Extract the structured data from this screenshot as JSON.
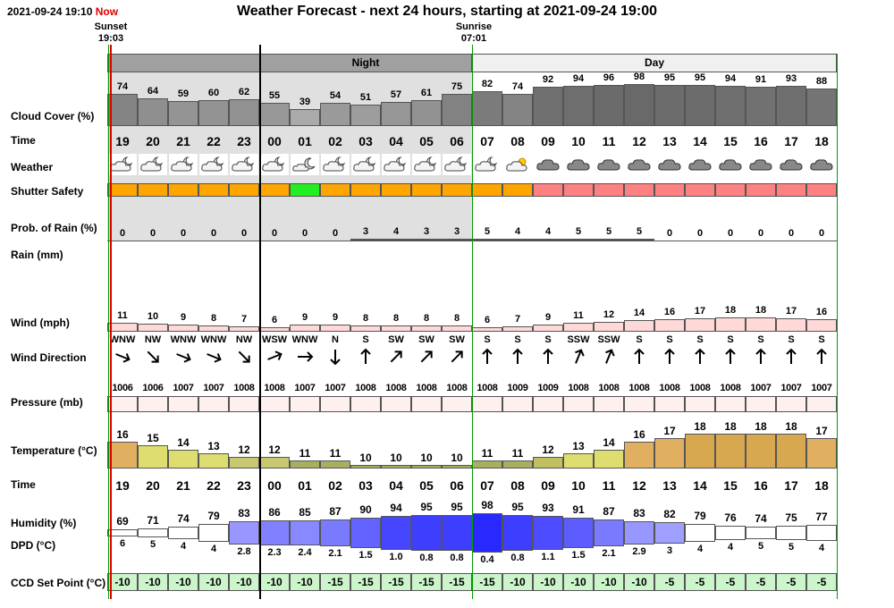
{
  "header": {
    "datetime": "2021-09-24 19:10",
    "now_label": "Now",
    "title": "Weather Forecast - next 24 hours, starting at 2021-09-24 19:00",
    "sunset_label": "Sunset",
    "sunset_time": "19:03",
    "sunrise_label": "Sunrise",
    "sunrise_time": "07:01",
    "night_label": "Night",
    "day_label": "Day"
  },
  "labels": {
    "cloud_cover": "Cloud Cover (%)",
    "time": "Time",
    "weather": "Weather",
    "shutter_safety": "Shutter Safety",
    "prob_rain": "Prob. of Rain (%)",
    "rain": "Rain (mm)",
    "wind": "Wind (mph)",
    "wind_direction": "Wind Direction",
    "pressure": "Pressure (mb)",
    "temperature": "Temperature (°C)",
    "time2": "Time",
    "humidity": "Humidity (%)",
    "dpd": "DPD (°C)",
    "ccd": "CCD Set Point (°C)"
  },
  "hours": [
    "19",
    "20",
    "21",
    "22",
    "23",
    "00",
    "01",
    "02",
    "03",
    "04",
    "05",
    "06",
    "07",
    "08",
    "09",
    "10",
    "11",
    "12",
    "13",
    "14",
    "15",
    "16",
    "17",
    "18"
  ],
  "cloud_cover": [
    74,
    64,
    59,
    60,
    62,
    55,
    39,
    54,
    51,
    57,
    61,
    75,
    82,
    74,
    92,
    94,
    96,
    98,
    95,
    95,
    94,
    91,
    93,
    88
  ],
  "weather_icons": [
    "partly-cloudy-night-icon",
    "partly-cloudy-night-icon",
    "partly-cloudy-night-icon",
    "partly-cloudy-night-icon",
    "partly-cloudy-night-icon",
    "partly-cloudy-night-icon",
    "moon-cloud-icon",
    "partly-cloudy-night-icon",
    "partly-cloudy-night-icon",
    "partly-cloudy-night-icon",
    "partly-cloudy-night-icon",
    "partly-cloudy-night-icon",
    "partly-cloudy-night-icon",
    "partly-cloudy-day-icon",
    "cloud-icon",
    "cloud-icon",
    "cloud-icon",
    "cloud-icon",
    "cloud-icon",
    "cloud-icon",
    "cloud-icon",
    "cloud-icon",
    "cloud-icon",
    "cloud-icon"
  ],
  "shutter_safety": [
    "orange",
    "orange",
    "orange",
    "orange",
    "orange",
    "orange",
    "green",
    "orange",
    "orange",
    "orange",
    "orange",
    "orange",
    "orange",
    "orange",
    "red",
    "red",
    "red",
    "red",
    "red",
    "red",
    "red",
    "red",
    "red",
    "red"
  ],
  "shutter_colors": {
    "orange": "#ffa500",
    "green": "#22ee22",
    "red": "#ff8080"
  },
  "prob_rain": [
    0,
    0,
    0,
    0,
    0,
    0,
    0,
    0,
    3,
    4,
    3,
    3,
    5,
    4,
    4,
    5,
    5,
    5,
    0,
    0,
    0,
    0,
    0,
    0
  ],
  "wind_speed": [
    11,
    10,
    9,
    8,
    7,
    6,
    9,
    9,
    8,
    8,
    8,
    8,
    6,
    7,
    9,
    11,
    12,
    14,
    16,
    17,
    18,
    18,
    17,
    16
  ],
  "wind_dir": [
    "WNW",
    "NW",
    "WNW",
    "WNW",
    "NW",
    "WSW",
    "WNW",
    "N",
    "S",
    "SW",
    "SW",
    "SW",
    "S",
    "S",
    "S",
    "SSW",
    "SSW",
    "S",
    "S",
    "S",
    "S",
    "S",
    "S",
    "S"
  ],
  "wind_arrow_deg": [
    112,
    135,
    112,
    112,
    135,
    68,
    90,
    180,
    0,
    45,
    45,
    45,
    0,
    0,
    0,
    22,
    22,
    0,
    0,
    0,
    0,
    0,
    0,
    0
  ],
  "pressure": [
    1006,
    1006,
    1007,
    1007,
    1008,
    1008,
    1007,
    1007,
    1008,
    1008,
    1008,
    1008,
    1008,
    1009,
    1009,
    1008,
    1008,
    1008,
    1008,
    1008,
    1008,
    1007,
    1007,
    1007
  ],
  "temperature": [
    16,
    15,
    14,
    13,
    12,
    12,
    11,
    11,
    10,
    10,
    10,
    10,
    11,
    11,
    12,
    13,
    14,
    16,
    17,
    18,
    18,
    18,
    18,
    17
  ],
  "humidity": [
    69,
    71,
    74,
    79,
    83,
    86,
    85,
    87,
    90,
    94,
    95,
    95,
    98,
    95,
    93,
    91,
    87,
    83,
    82,
    79,
    76,
    74,
    75,
    77
  ],
  "dpd": [
    "6",
    "5",
    "4",
    "4",
    "2.8",
    "2.3",
    "2.4",
    "2.1",
    "1.5",
    "1.0",
    "0.8",
    "0.8",
    "0.4",
    "0.8",
    "1.1",
    "1.5",
    "2.1",
    "2.9",
    "3",
    "4",
    "4",
    "5",
    "5",
    "4"
  ],
  "ccd": [
    -10,
    -10,
    -10,
    -10,
    -10,
    -10,
    -10,
    -15,
    -15,
    -15,
    -15,
    -15,
    -15,
    -10,
    -10,
    -10,
    -10,
    -10,
    -5,
    -5,
    -5,
    -5,
    -5,
    -5
  ]
}
